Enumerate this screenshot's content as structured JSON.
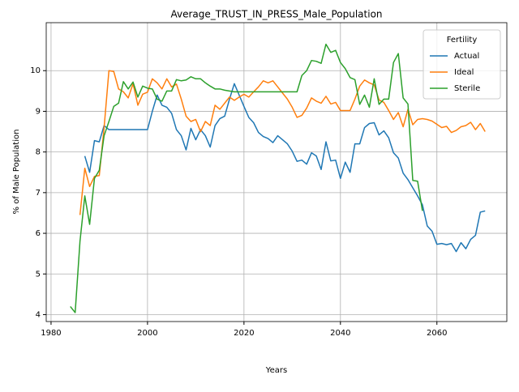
{
  "chart_data": {
    "type": "line",
    "title": "Average_TRUST_IN_PRESS_Male_Population",
    "x_label": "Years",
    "y_label": "% of Male Population",
    "legend_title": "Fertility",
    "legend_position": "upper right",
    "grid": true,
    "x": [
      1984,
      1985,
      1986,
      1987,
      1988,
      1989,
      1990,
      1991,
      1992,
      1993,
      1994,
      1995,
      1996,
      1997,
      1998,
      1999,
      2000,
      2001,
      2002,
      2003,
      2004,
      2005,
      2006,
      2007,
      2008,
      2009,
      2010,
      2011,
      2012,
      2013,
      2014,
      2015,
      2016,
      2017,
      2018,
      2019,
      2020,
      2021,
      2022,
      2023,
      2024,
      2025,
      2026,
      2027,
      2028,
      2029,
      2030,
      2031,
      2032,
      2033,
      2034,
      2035,
      2036,
      2037,
      2038,
      2039,
      2040,
      2041,
      2042,
      2043,
      2044,
      2045,
      2046,
      2047,
      2048,
      2049,
      2050,
      2051,
      2052,
      2053,
      2054,
      2055,
      2056,
      2057,
      2058,
      2059,
      2060,
      2061,
      2062,
      2063,
      2064,
      2065,
      2066,
      2067,
      2068,
      2069,
      2070
    ],
    "series": [
      {
        "name": "Actual",
        "color": "#1f77b4",
        "values": [
          null,
          null,
          null,
          7.9,
          7.5,
          8.28,
          8.25,
          8.65,
          8.55,
          8.55,
          8.55,
          8.55,
          8.55,
          8.55,
          8.55,
          8.55,
          8.55,
          9.0,
          9.4,
          9.15,
          9.1,
          8.95,
          8.55,
          8.4,
          8.05,
          8.58,
          8.3,
          8.55,
          8.4,
          8.12,
          8.65,
          8.82,
          8.88,
          9.3,
          9.68,
          9.4,
          9.12,
          8.85,
          8.72,
          8.48,
          8.38,
          8.33,
          8.23,
          8.4,
          8.3,
          8.2,
          8.02,
          7.77,
          7.8,
          7.7,
          7.98,
          7.9,
          7.57,
          8.25,
          7.78,
          7.8,
          7.35,
          7.75,
          7.5,
          8.2,
          8.2,
          8.6,
          8.7,
          8.72,
          8.42,
          8.52,
          8.35,
          7.98,
          7.85,
          7.48,
          7.32,
          7.12,
          6.92,
          6.7,
          6.18,
          6.05,
          5.73,
          5.75,
          5.72,
          5.75,
          5.55,
          5.77,
          5.62,
          5.85,
          5.95,
          6.52,
          6.55
        ]
      },
      {
        "name": "Ideal",
        "color": "#ff7f0e",
        "values": [
          null,
          null,
          6.45,
          7.6,
          7.15,
          7.4,
          7.42,
          8.6,
          10.0,
          9.98,
          9.55,
          9.48,
          9.33,
          9.68,
          9.15,
          9.42,
          9.47,
          9.8,
          9.7,
          9.55,
          9.8,
          9.6,
          9.67,
          9.3,
          8.88,
          8.75,
          8.8,
          8.5,
          8.75,
          8.65,
          9.15,
          9.05,
          9.2,
          9.35,
          9.27,
          9.35,
          9.42,
          9.35,
          9.48,
          9.6,
          9.75,
          9.7,
          9.75,
          9.6,
          9.45,
          9.3,
          9.1,
          8.85,
          8.9,
          9.08,
          9.33,
          9.25,
          9.2,
          9.37,
          9.18,
          9.22,
          9.02,
          9.02,
          9.02,
          9.3,
          9.62,
          9.77,
          9.7,
          9.65,
          9.28,
          9.22,
          9.02,
          8.8,
          8.97,
          8.62,
          9.05,
          8.67,
          8.8,
          8.82,
          8.8,
          8.76,
          8.68,
          8.6,
          8.63,
          8.48,
          8.53,
          8.62,
          8.65,
          8.73,
          8.55,
          8.7,
          8.5
        ]
      },
      {
        "name": "Sterile",
        "color": "#2ca02c",
        "values": [
          4.2,
          4.05,
          5.8,
          6.92,
          6.22,
          7.35,
          7.55,
          8.4,
          8.75,
          9.12,
          9.2,
          9.73,
          9.55,
          9.72,
          9.35,
          9.62,
          9.57,
          9.55,
          9.3,
          9.25,
          9.5,
          9.5,
          9.78,
          9.75,
          9.77,
          9.85,
          9.8,
          9.8,
          9.7,
          9.62,
          9.55,
          9.55,
          9.52,
          9.5,
          9.48,
          9.48,
          9.48,
          9.48,
          9.48,
          9.48,
          9.48,
          9.48,
          9.48,
          9.48,
          9.48,
          9.48,
          9.48,
          9.48,
          9.88,
          10.0,
          10.25,
          10.23,
          10.18,
          10.65,
          10.45,
          10.5,
          10.2,
          10.05,
          9.83,
          9.78,
          9.17,
          9.4,
          9.1,
          9.8,
          9.17,
          9.3,
          9.3,
          10.2,
          10.42,
          9.33,
          9.18,
          7.3,
          7.28,
          6.55,
          null,
          null,
          null,
          null,
          null,
          null,
          null,
          null,
          null,
          null,
          null,
          null,
          null
        ]
      }
    ],
    "xlim": [
      1979,
      2074.5
    ],
    "ylim": [
      3.83,
      11.18
    ],
    "xticks": [
      1980,
      2000,
      2020,
      2040,
      2060
    ],
    "yticks": [
      4,
      5,
      6,
      7,
      8,
      9,
      10
    ]
  }
}
